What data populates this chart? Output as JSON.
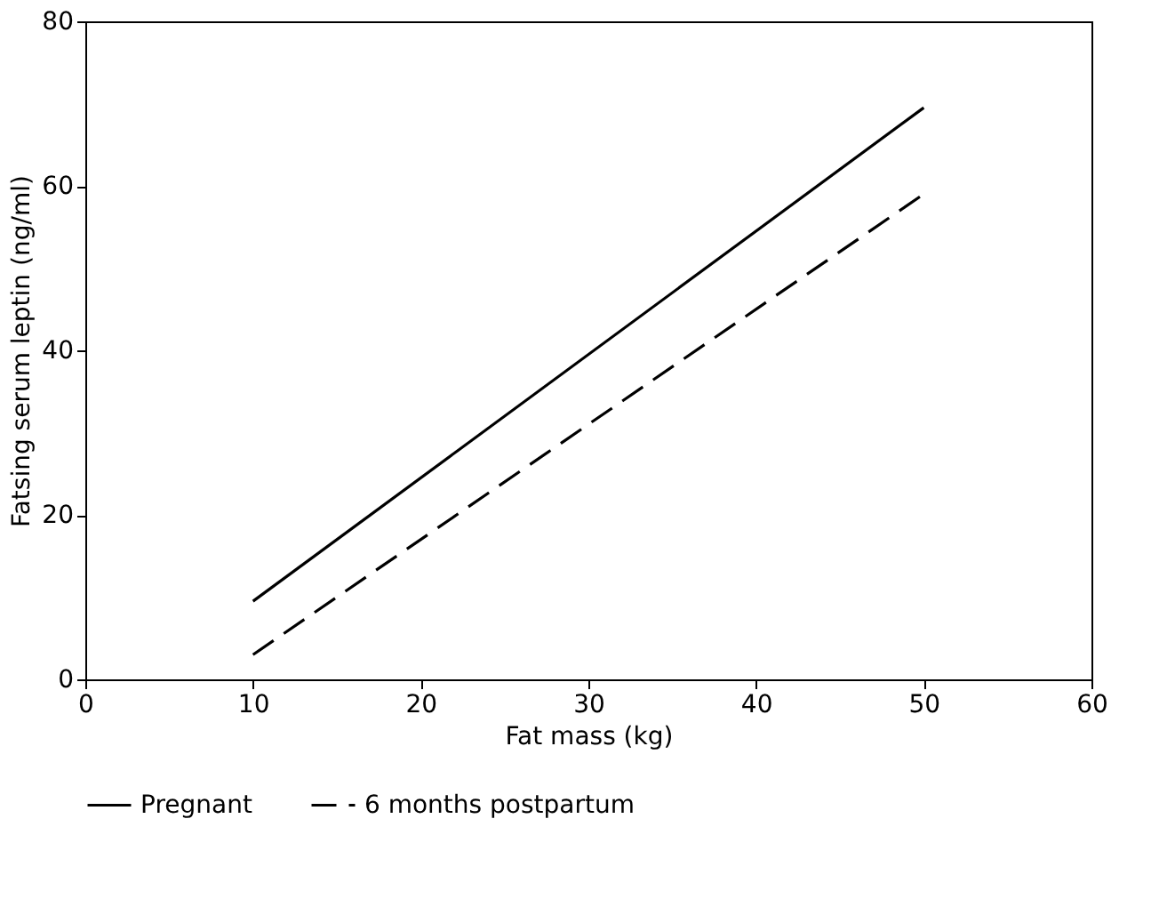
{
  "chart_data": {
    "type": "line",
    "xlabel": "Fat mass (kg)",
    "ylabel": "Fatsing serum leptin (ng/ml)",
    "xlim": [
      0,
      60
    ],
    "ylim": [
      0,
      80
    ],
    "xticks": [
      0,
      10,
      20,
      30,
      40,
      50,
      60
    ],
    "yticks": [
      0,
      20,
      40,
      60,
      80
    ],
    "grid": false,
    "legend": "bottom",
    "x": [
      10,
      50
    ],
    "series": [
      {
        "name": "Pregnant",
        "color": "#000000",
        "values": [
          9.5,
          69.5
        ],
        "line_style": "solid"
      },
      {
        "name": "6 months postpartum",
        "color": "#000000",
        "values": [
          3,
          59
        ],
        "line_style": "dashed"
      }
    ]
  }
}
